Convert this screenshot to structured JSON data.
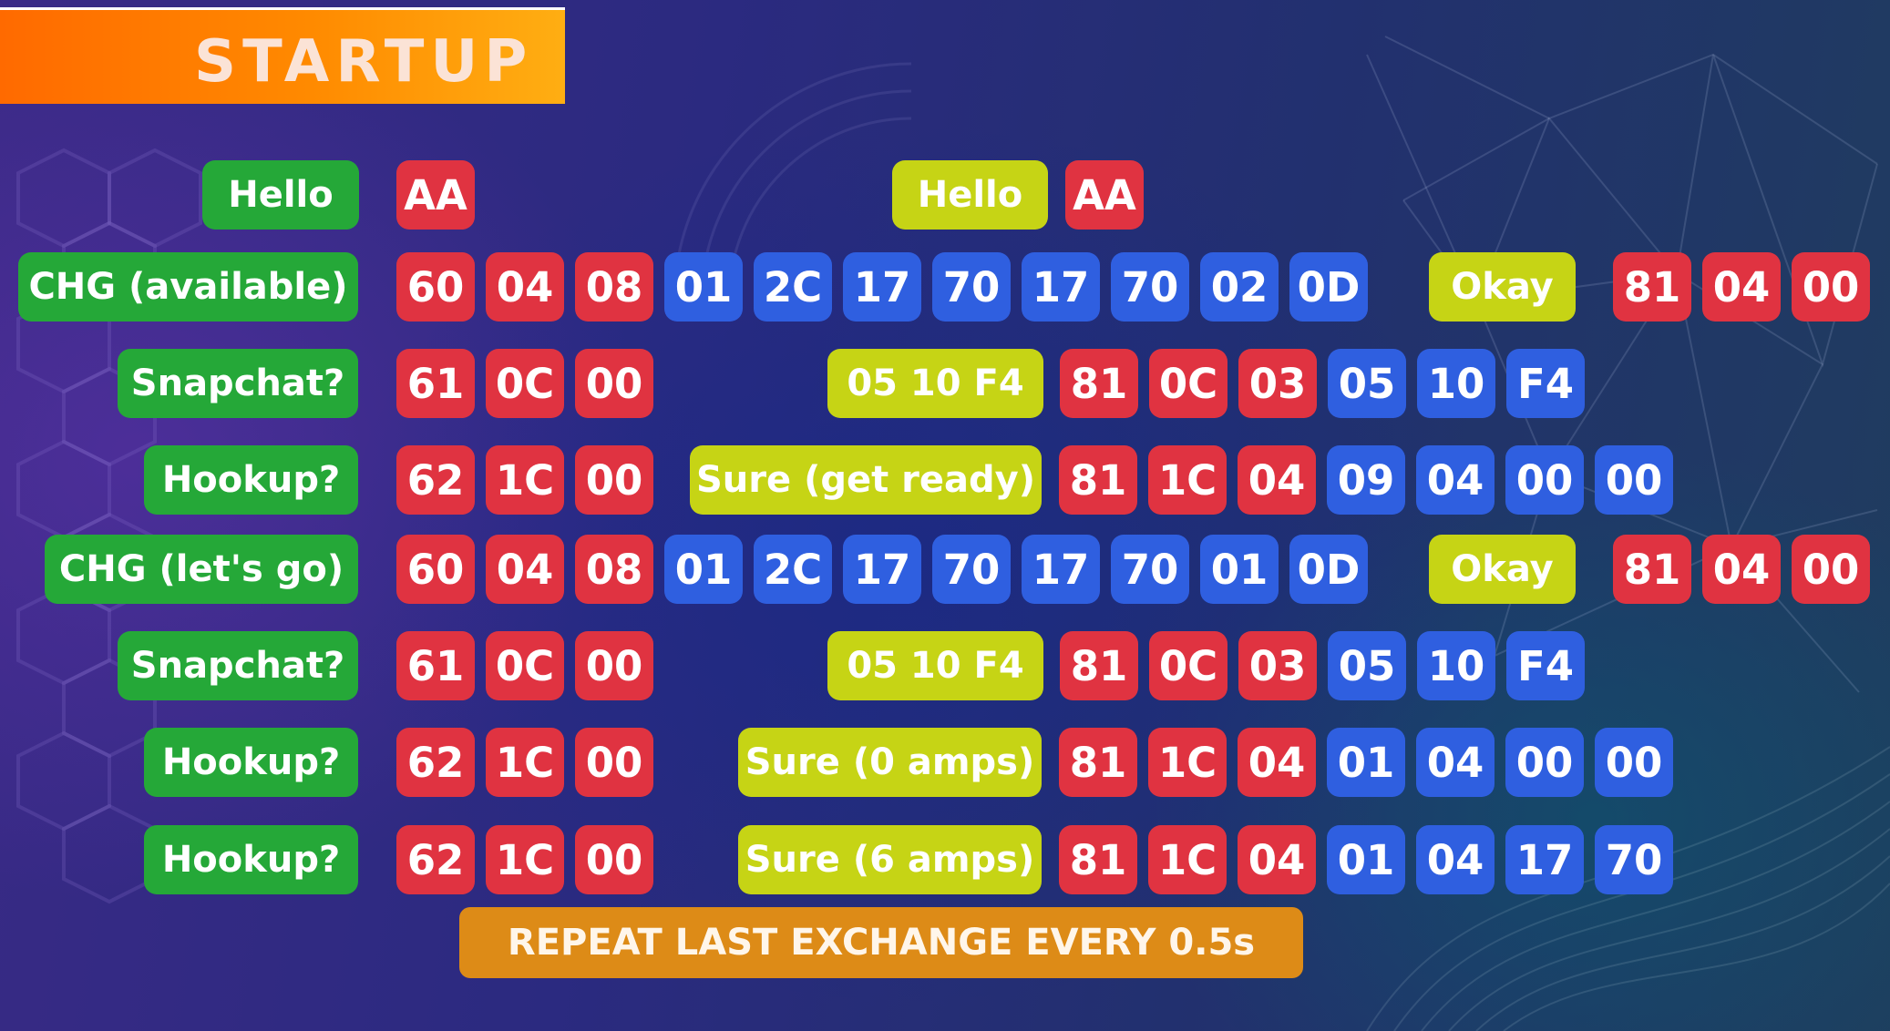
{
  "title": "STARTUP",
  "colors": {
    "label": "#25a838",
    "response": "#c6d415",
    "byte_red": "#e03341",
    "byte_blue": "#2f5fe0",
    "banner": "#ff7a00",
    "footer": "#dd8b17"
  },
  "rows": [
    {
      "label": "Hello",
      "bytes": [
        "AA"
      ],
      "response": "Hello",
      "response_bytes": [
        "AA"
      ]
    },
    {
      "label": "CHG (available)",
      "bytes": [
        "60",
        "04",
        "08",
        "01",
        "2C",
        "17",
        "70",
        "17",
        "70",
        "02",
        "0D"
      ],
      "response": "Okay",
      "response_bytes": [
        "81",
        "04",
        "00"
      ]
    },
    {
      "label": "Snapchat?",
      "bytes": [
        "61",
        "0C",
        "00"
      ],
      "response": "05 10 F4",
      "response_bytes": [
        "81",
        "0C",
        "03",
        "05",
        "10",
        "F4"
      ]
    },
    {
      "label": "Hookup?",
      "bytes": [
        "62",
        "1C",
        "00"
      ],
      "response": "Sure (get ready)",
      "response_bytes": [
        "81",
        "1C",
        "04",
        "09",
        "04",
        "00",
        "00"
      ]
    },
    {
      "label": "CHG (let's go)",
      "bytes": [
        "60",
        "04",
        "08",
        "01",
        "2C",
        "17",
        "70",
        "17",
        "70",
        "01",
        "0D"
      ],
      "response": "Okay",
      "response_bytes": [
        "81",
        "04",
        "00"
      ]
    },
    {
      "label": "Snapchat?",
      "bytes": [
        "61",
        "0C",
        "00"
      ],
      "response": "05 10 F4",
      "response_bytes": [
        "81",
        "0C",
        "03",
        "05",
        "10",
        "F4"
      ]
    },
    {
      "label": "Hookup?",
      "bytes": [
        "62",
        "1C",
        "00"
      ],
      "response": "Sure (0 amps)",
      "response_bytes": [
        "81",
        "1C",
        "04",
        "01",
        "04",
        "00",
        "00"
      ]
    },
    {
      "label": "Hookup?",
      "bytes": [
        "62",
        "1C",
        "00"
      ],
      "response": "Sure (6 amps)",
      "response_bytes": [
        "81",
        "1C",
        "04",
        "01",
        "04",
        "17",
        "70"
      ]
    }
  ],
  "footer": "REPEAT LAST EXCHANGE EVERY 0.5s"
}
